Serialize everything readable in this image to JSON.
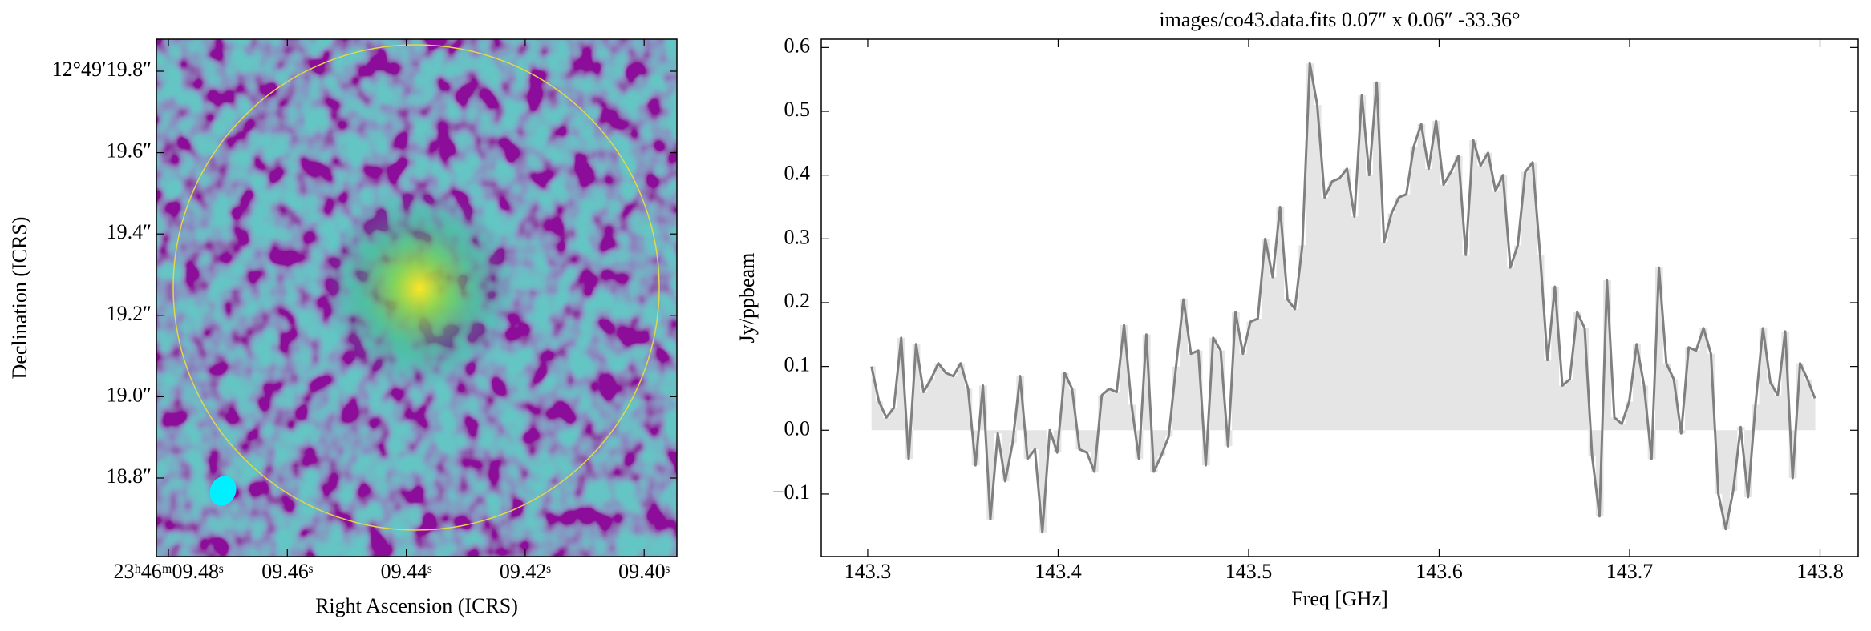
{
  "chart_data": [
    {
      "type": "image",
      "xlabel": "Right Ascension (ICRS)",
      "ylabel": "Declination (ICRS)",
      "x_tick_labels": [
        "23ʰ46ᵐ09.48ˢ",
        "09.46ˢ",
        "09.44ˢ",
        "09.42ˢ",
        "09.40ˢ"
      ],
      "y_tick_labels": [
        "12°49′19.8″",
        "19.6″",
        "19.4″",
        "19.2″",
        "19.0″",
        "18.8″"
      ],
      "region_color": "#e3d84a",
      "beam_color": "#00f0ff"
    },
    {
      "type": "line",
      "title": "images/co43.data.fits 0.07″ x 0.06″ -33.36°",
      "xlabel": "Freq [GHz]",
      "ylabel": "Jy/ppbeam",
      "color": "#808080",
      "fill_color": "#e5e5e5",
      "xlim": [
        143.2756,
        143.82
      ],
      "ylim": [
        -0.198,
        0.613
      ],
      "xticks": [
        143.3,
        143.4,
        143.5,
        143.6,
        143.7,
        143.8
      ],
      "yticks": [
        {
          "value": -0.1,
          "label": "−0.1"
        },
        {
          "value": 0,
          "label": "0.0"
        },
        0.1,
        0.2,
        0.3,
        0.4,
        0.5,
        0.6
      ],
      "x": [
        143.302,
        143.3059,
        143.3098,
        143.3137,
        143.3176,
        143.3215,
        143.3254,
        143.3293,
        143.3332,
        143.3371,
        143.341,
        143.3449,
        143.3488,
        143.3527,
        143.3566,
        143.3605,
        143.3644,
        143.3683,
        143.3722,
        143.3761,
        143.38,
        143.3839,
        143.3878,
        143.3917,
        143.3956,
        143.3995,
        143.4034,
        143.4073,
        143.4112,
        143.4151,
        143.419,
        143.4229,
        143.4268,
        143.4307,
        143.4346,
        143.4385,
        143.4424,
        143.4463,
        143.4502,
        143.4541,
        143.458,
        143.4619,
        143.4658,
        143.4697,
        143.4736,
        143.4775,
        143.4814,
        143.4853,
        143.4892,
        143.4931,
        143.497,
        143.5009,
        143.5048,
        143.5087,
        143.5126,
        143.5165,
        143.5204,
        143.5243,
        143.5282,
        143.5321,
        143.536,
        143.5399,
        143.5438,
        143.5477,
        143.5516,
        143.5555,
        143.5594,
        143.5633,
        143.5672,
        143.5711,
        143.575,
        143.5789,
        143.5828,
        143.5867,
        143.5906,
        143.5945,
        143.5984,
        143.6023,
        143.6062,
        143.6101,
        143.614,
        143.6179,
        143.6218,
        143.6257,
        143.6296,
        143.6335,
        143.6374,
        143.6413,
        143.6452,
        143.6491,
        143.653,
        143.6569,
        143.6608,
        143.6647,
        143.6686,
        143.6725,
        143.6764,
        143.6803,
        143.6842,
        143.6881,
        143.692,
        143.6959,
        143.6998,
        143.7037,
        143.7076,
        143.7115,
        143.7154,
        143.7193,
        143.7232,
        143.7271,
        143.731,
        143.7349,
        143.7388,
        143.7427,
        143.7466,
        143.7505,
        143.7544,
        143.7583,
        143.7622,
        143.7661,
        143.77,
        143.7739,
        143.7778,
        143.7817,
        143.7856,
        143.7895,
        143.7934,
        143.7973
      ],
      "values": [
        0.1,
        0.045,
        0.02,
        0.035,
        0.145,
        -0.045,
        0.135,
        0.06,
        0.08,
        0.105,
        0.09,
        0.085,
        0.105,
        0.065,
        -0.055,
        0.07,
        -0.14,
        -0.005,
        -0.08,
        -0.02,
        0.085,
        -0.045,
        -0.03,
        -0.16,
        0.0,
        -0.035,
        0.09,
        0.065,
        -0.03,
        -0.035,
        -0.065,
        0.055,
        0.065,
        0.06,
        0.165,
        0.04,
        -0.045,
        0.15,
        -0.065,
        -0.04,
        -0.01,
        0.1,
        0.205,
        0.12,
        0.125,
        -0.055,
        0.145,
        0.125,
        -0.025,
        0.185,
        0.12,
        0.17,
        0.175,
        0.3,
        0.24,
        0.35,
        0.205,
        0.19,
        0.29,
        0.575,
        0.51,
        0.365,
        0.39,
        0.395,
        0.41,
        0.335,
        0.525,
        0.4,
        0.545,
        0.295,
        0.34,
        0.365,
        0.37,
        0.445,
        0.48,
        0.41,
        0.485,
        0.385,
        0.405,
        0.43,
        0.275,
        0.455,
        0.415,
        0.435,
        0.375,
        0.4,
        0.255,
        0.29,
        0.405,
        0.42,
        0.275,
        0.11,
        0.225,
        0.07,
        0.08,
        0.185,
        0.16,
        -0.04,
        -0.135,
        0.235,
        0.02,
        0.01,
        0.045,
        0.135,
        0.07,
        -0.045,
        0.255,
        0.105,
        0.08,
        -0.005,
        0.13,
        0.125,
        0.16,
        0.12,
        -0.1,
        -0.155,
        -0.095,
        0.005,
        -0.105,
        0.04,
        0.16,
        0.075,
        0.055,
        0.155,
        -0.075,
        0.105,
        0.08,
        0.05
      ]
    }
  ]
}
